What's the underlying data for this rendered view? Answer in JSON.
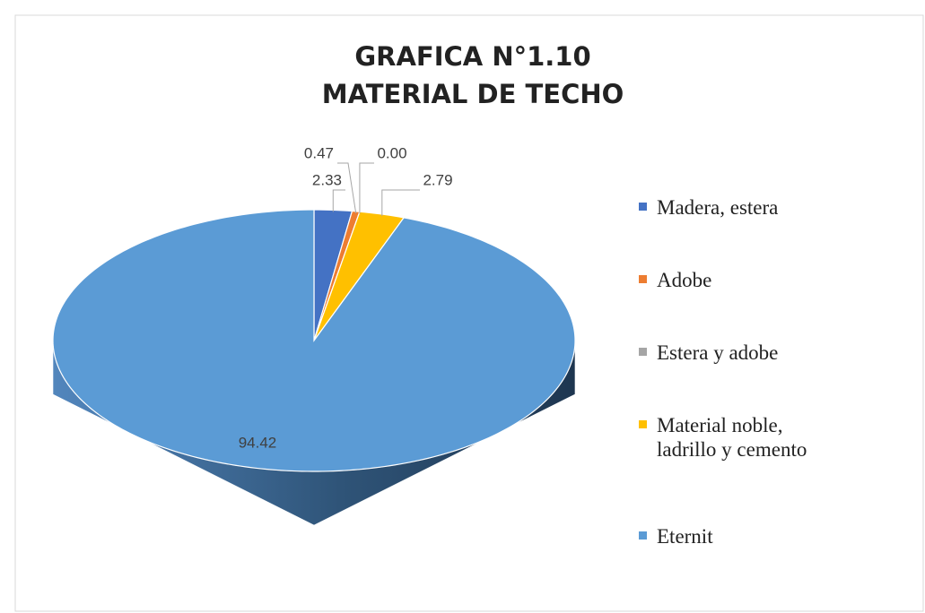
{
  "chart_data": {
    "type": "pie3d",
    "title": [
      "GRAFICA N°1.10",
      "MATERIAL DE TECHO"
    ],
    "categories": [
      "Madera, estera",
      "Adobe",
      "Estera y adobe",
      "Material noble, ladrillo y cemento",
      "Eternit"
    ],
    "values": [
      2.33,
      0.47,
      0.0,
      2.79,
      94.42
    ],
    "value_labels": [
      "2.33",
      "0.47",
      "0.00",
      "2.79",
      "94.42"
    ],
    "colors": [
      "#4472c4",
      "#ed7d31",
      "#a5a5a5",
      "#ffc000",
      "#5b9bd5"
    ],
    "legend": "right"
  }
}
